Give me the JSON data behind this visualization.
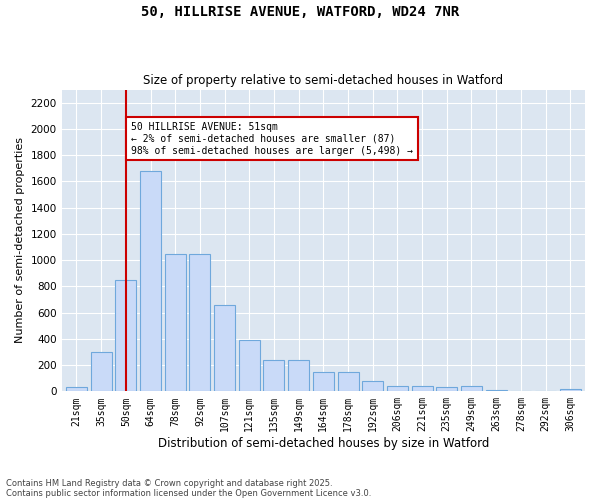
{
  "title_line1": "50, HILLRISE AVENUE, WATFORD, WD24 7NR",
  "title_line2": "Size of property relative to semi-detached houses in Watford",
  "xlabel": "Distribution of semi-detached houses by size in Watford",
  "ylabel": "Number of semi-detached properties",
  "categories": [
    "21sqm",
    "35sqm",
    "50sqm",
    "64sqm",
    "78sqm",
    "92sqm",
    "107sqm",
    "121sqm",
    "135sqm",
    "149sqm",
    "164sqm",
    "178sqm",
    "192sqm",
    "206sqm",
    "221sqm",
    "235sqm",
    "249sqm",
    "263sqm",
    "278sqm",
    "292sqm",
    "306sqm"
  ],
  "values": [
    30,
    300,
    850,
    1680,
    1050,
    1050,
    660,
    390,
    240,
    240,
    150,
    150,
    80,
    40,
    40,
    30,
    40,
    10,
    5,
    5,
    20
  ],
  "bar_color": "#c9daf8",
  "bar_edgecolor": "#6fa8dc",
  "property_line_x": 2,
  "annotation_text": "50 HILLRISE AVENUE: 51sqm\n← 2% of semi-detached houses are smaller (87)\n98% of semi-detached houses are larger (5,498) →",
  "annotation_box_color": "#ffffff",
  "annotation_box_edgecolor": "#cc0000",
  "vline_color": "#cc0000",
  "ylim": [
    0,
    2300
  ],
  "yticks": [
    0,
    200,
    400,
    600,
    800,
    1000,
    1200,
    1400,
    1600,
    1800,
    2000,
    2200
  ],
  "background_color": "#dce6f1",
  "grid_color": "#ffffff",
  "footer_line1": "Contains HM Land Registry data © Crown copyright and database right 2025.",
  "footer_line2": "Contains public sector information licensed under the Open Government Licence v3.0.",
  "figsize": [
    6.0,
    5.0
  ],
  "dpi": 100
}
